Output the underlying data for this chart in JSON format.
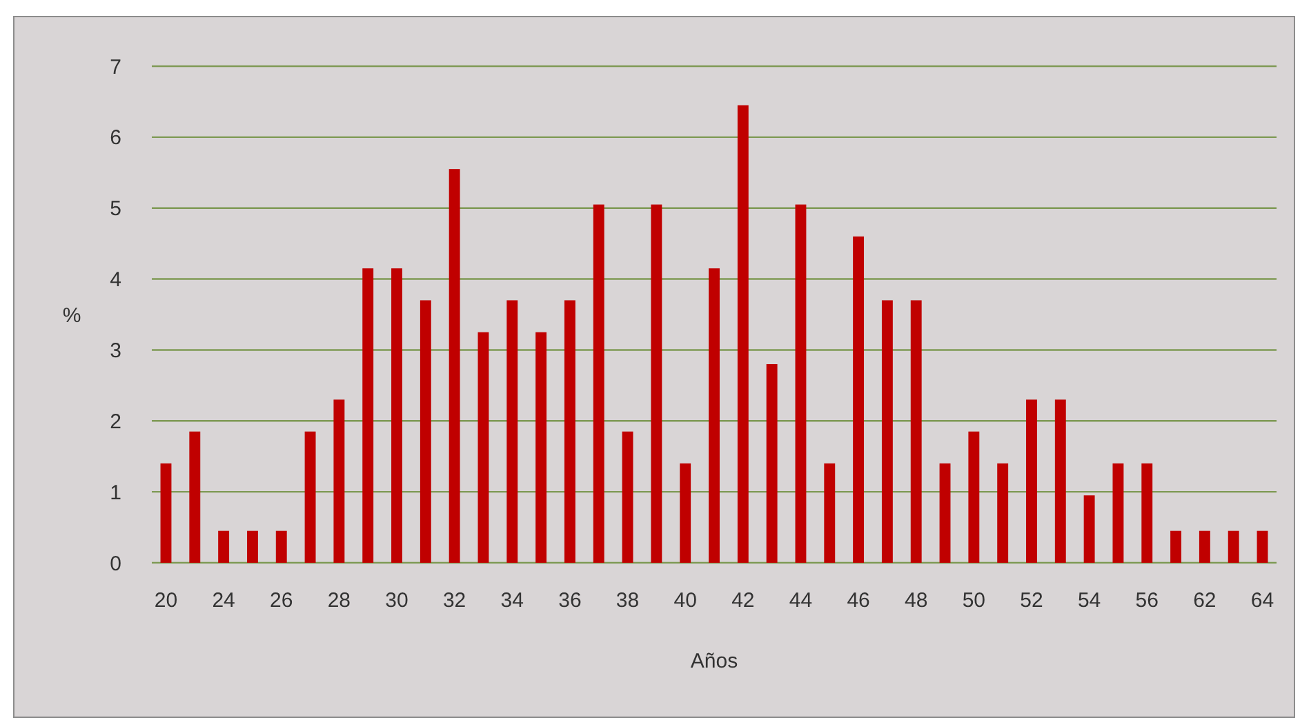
{
  "chart_data": {
    "type": "bar",
    "xlabel": "Años",
    "ylabel": "%",
    "categories": [
      "20",
      null,
      "24",
      null,
      "26",
      null,
      "28",
      null,
      "30",
      null,
      "32",
      null,
      "34",
      null,
      "36",
      null,
      "38",
      null,
      "40",
      null,
      "42",
      null,
      "44",
      null,
      "46",
      null,
      "48",
      null,
      "50",
      null,
      "52",
      null,
      "54",
      null,
      "56",
      null,
      "62",
      null,
      "64"
    ],
    "values": [
      1.4,
      1.85,
      0.45,
      0.45,
      0.45,
      1.85,
      2.3,
      4.15,
      4.15,
      3.7,
      5.55,
      3.25,
      3.7,
      3.25,
      3.7,
      5.05,
      1.85,
      5.05,
      1.4,
      4.15,
      6.45,
      2.8,
      5.05,
      1.4,
      4.6,
      3.7,
      3.7,
      1.4,
      1.85,
      1.4,
      2.3,
      2.3,
      0.95,
      1.4,
      1.4,
      0.45,
      0.45,
      0.45,
      0.45
    ],
    "color": "#c00000",
    "ylim": [
      0,
      7
    ],
    "yticks": [
      0,
      1,
      2,
      3,
      4,
      5,
      6,
      7
    ],
    "grid": "y"
  }
}
